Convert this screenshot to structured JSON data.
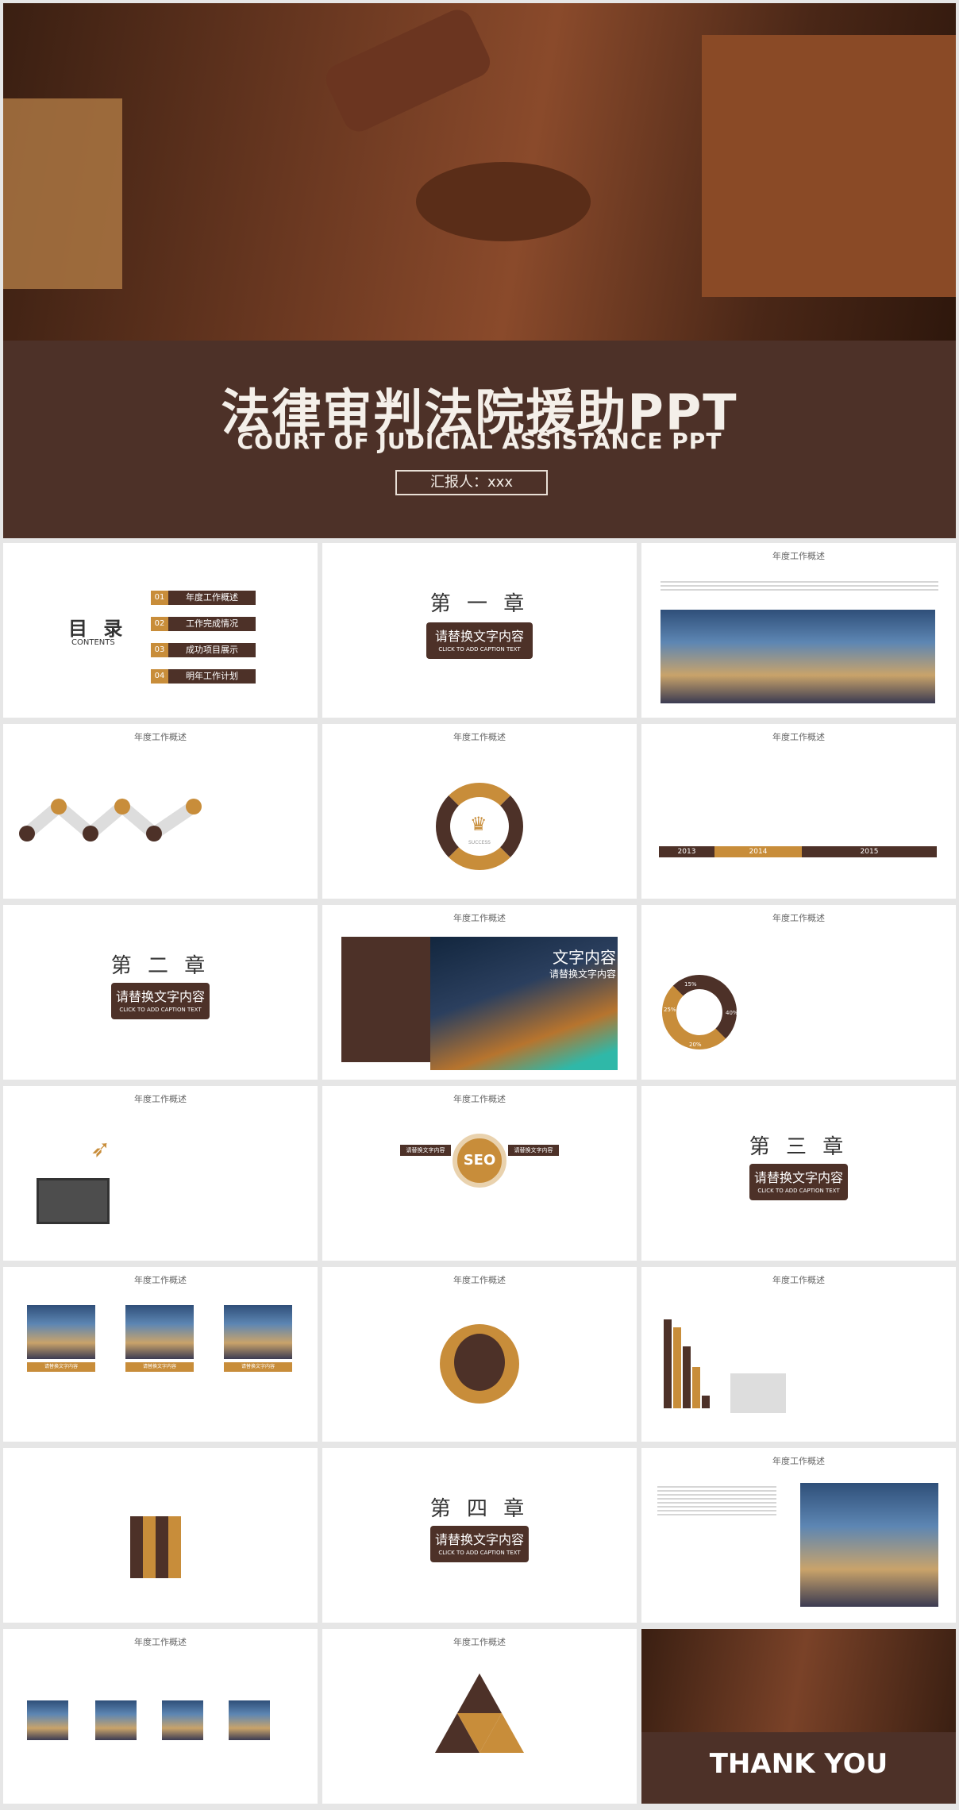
{
  "hero": {
    "title": "法律审判法院援助PPT",
    "subtitle": "COURT OF JUDICIAL ASSISTANCE PPT",
    "reporter": "汇报人：xxx"
  },
  "slide_title": "年度工作概述",
  "contents": {
    "title": "目 录",
    "subtitle": "CONTENTS",
    "items": [
      {
        "num": "01",
        "label": "年度工作概述"
      },
      {
        "num": "02",
        "label": "工作完成情况"
      },
      {
        "num": "03",
        "label": "成功项目展示"
      },
      {
        "num": "04",
        "label": "明年工作计划"
      }
    ]
  },
  "chapters": [
    {
      "title": "第 一 章",
      "box": "请替换文字内容",
      "caption": "CLICK TO ADD CAPTION TEXT"
    },
    {
      "title": "第 二 章",
      "box": "请替换文字内容",
      "caption": "CLICK TO ADD CAPTION TEXT"
    },
    {
      "title": "第 三 章",
      "box": "请替换文字内容",
      "caption": "CLICK TO ADD CAPTION TEXT"
    },
    {
      "title": "第 四 章",
      "box": "请替换文字内容",
      "caption": "CLICK TO ADD CAPTION TEXT"
    }
  ],
  "timeline": {
    "years": [
      "2013",
      "2014",
      "2015"
    ]
  },
  "text_slide": {
    "heading": "文字内容",
    "sub": "请替换文字内容"
  },
  "seo": {
    "center": "SEO",
    "label": "请替换文字内容"
  },
  "success": {
    "center": "SUCCESS"
  },
  "pie_labels": [
    "15%",
    "40%",
    "20%",
    "25%"
  ],
  "photo_cards": [
    "请替换文字内容",
    "请替换文字内容",
    "请替换文字内容"
  ],
  "thank_you": "THANK YOU",
  "colors": {
    "brown": "#4d3128",
    "gold": "#c88d3a"
  }
}
